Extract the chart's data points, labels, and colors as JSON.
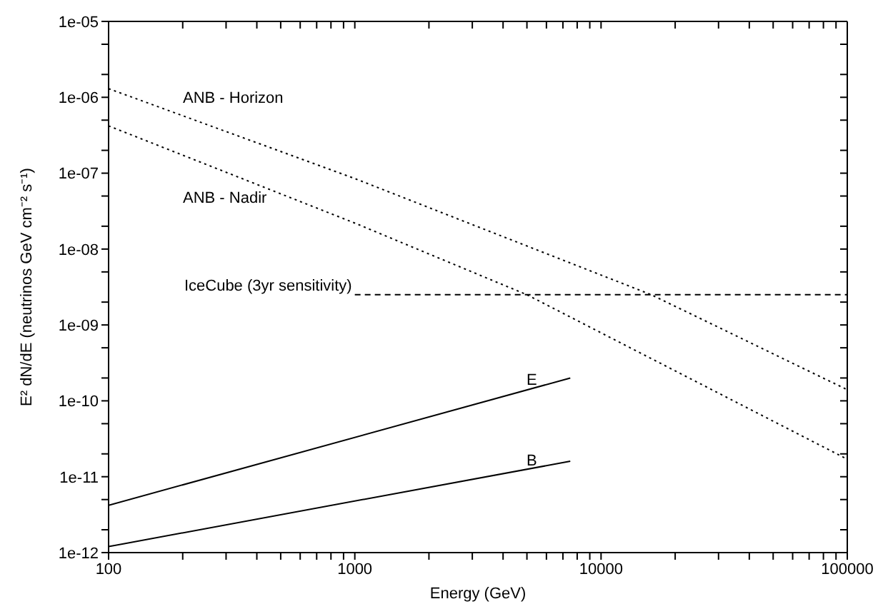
{
  "chart_data": {
    "type": "line",
    "xlabel": "Energy (GeV)",
    "ylabel": "E² dN/dE (neutrinos GeV cm⁻² s⁻¹)",
    "log": "xy",
    "marker": "none",
    "xlim": [
      100,
      100000
    ],
    "xticks": [
      100,
      {
        "value": 200,
        "label": null
      },
      {
        "value": 300,
        "label": null
      },
      {
        "value": 400,
        "label": null
      },
      {
        "value": 500,
        "label": null
      },
      {
        "value": 600,
        "label": null
      },
      {
        "value": 700,
        "label": null
      },
      {
        "value": 800,
        "label": null
      },
      {
        "value": 900,
        "label": null
      },
      1000,
      {
        "value": 2000,
        "label": null
      },
      {
        "value": 3000,
        "label": null
      },
      {
        "value": 4000,
        "label": null
      },
      {
        "value": 5000,
        "label": null
      },
      {
        "value": 6000,
        "label": null
      },
      {
        "value": 7000,
        "label": null
      },
      {
        "value": 8000,
        "label": null
      },
      {
        "value": 9000,
        "label": null
      },
      10000,
      {
        "value": 20000,
        "label": null
      },
      {
        "value": 30000,
        "label": null
      },
      {
        "value": 40000,
        "label": null
      },
      {
        "value": 50000,
        "label": null
      },
      {
        "value": 60000,
        "label": null
      },
      {
        "value": 70000,
        "label": null
      },
      {
        "value": 80000,
        "label": null
      },
      {
        "value": 90000,
        "label": null
      },
      100000
    ],
    "ylim": [
      1e-12,
      1e-05
    ],
    "yticks": [
      {
        "value": 1e-12,
        "label": "1e-12"
      },
      {
        "value": 2e-12,
        "label": null
      },
      {
        "value": 5e-12,
        "label": null
      },
      {
        "value": 1e-11,
        "label": "1e-11"
      },
      {
        "value": 2e-11,
        "label": null
      },
      {
        "value": 5e-11,
        "label": null
      },
      {
        "value": 1e-10,
        "label": "1e-10"
      },
      {
        "value": 2e-10,
        "label": null
      },
      {
        "value": 5e-10,
        "label": null
      },
      {
        "value": 1e-09,
        "label": "1e-09"
      },
      {
        "value": 2e-09,
        "label": null
      },
      {
        "value": 5e-09,
        "label": null
      },
      {
        "value": 1e-08,
        "label": "1e-08"
      },
      {
        "value": 2e-08,
        "label": null
      },
      {
        "value": 5e-08,
        "label": null
      },
      {
        "value": 1e-07,
        "label": "1e-07"
      },
      {
        "value": 2e-07,
        "label": null
      },
      {
        "value": 5e-07,
        "label": null
      },
      {
        "value": 1e-06,
        "label": "1e-06"
      },
      {
        "value": 2e-06,
        "label": null
      },
      {
        "value": 5e-06,
        "label": null
      },
      {
        "value": 1e-05,
        "label": "1e-05"
      }
    ],
    "series": [
      {
        "name": "ANB - Horizon",
        "color": "#000000",
        "line_style": "dotted",
        "x": [
          100,
          1000,
          16000,
          100000
        ],
        "values": [
          1.3e-06,
          8.5e-08,
          2.5e-09,
          1.4e-10
        ]
      },
      {
        "name": "ANB - Nadir",
        "color": "#000000",
        "line_style": "dotted",
        "x": [
          100,
          1000,
          5000,
          100000
        ],
        "values": [
          4.2e-07,
          2.2e-08,
          2.5e-09,
          1.7e-11
        ]
      },
      {
        "name": "IceCube (3yr sensitivity)",
        "color": "#000000",
        "line_style": "dashed",
        "x": [
          1000,
          100000
        ],
        "values": [
          2.5e-09,
          2.5e-09
        ]
      },
      {
        "name": "E",
        "color": "#000000",
        "line_style": "solid",
        "x": [
          100,
          7500
        ],
        "values": [
          4.2e-12,
          2e-10
        ]
      },
      {
        "name": "B",
        "color": "#000000",
        "line_style": "solid",
        "x": [
          100,
          7500
        ],
        "values": [
          1.2e-12,
          1.6e-11
        ]
      }
    ]
  }
}
